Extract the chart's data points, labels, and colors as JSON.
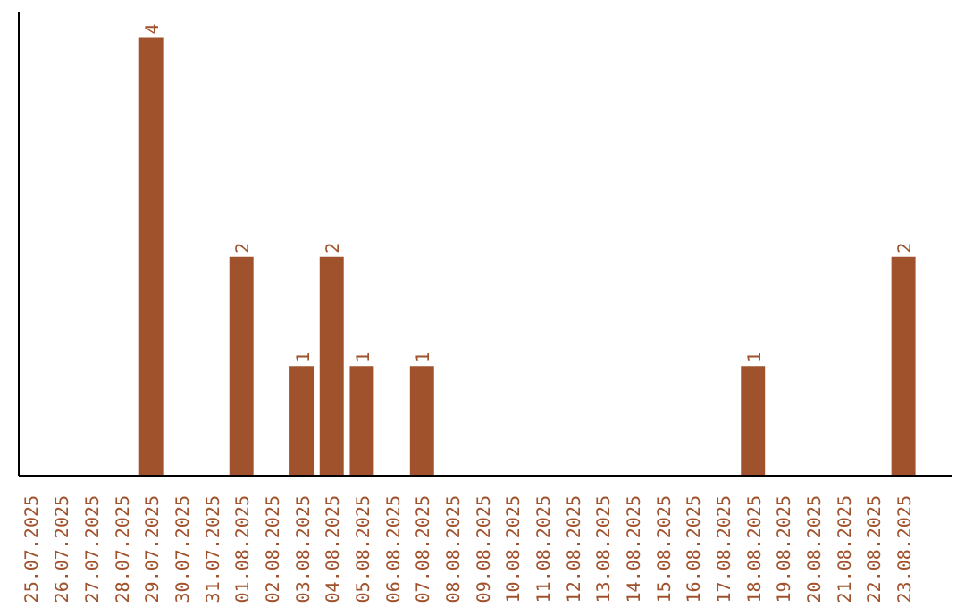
{
  "chart_data": {
    "type": "bar",
    "categories": [
      "25.07.2025",
      "26.07.2025",
      "27.07.2025",
      "28.07.2025",
      "29.07.2025",
      "30.07.2025",
      "31.07.2025",
      "01.08.2025",
      "02.08.2025",
      "03.08.2025",
      "04.08.2025",
      "05.08.2025",
      "06.08.2025",
      "07.08.2025",
      "08.08.2025",
      "09.08.2025",
      "10.08.2025",
      "11.08.2025",
      "12.08.2025",
      "13.08.2025",
      "14.08.2025",
      "15.08.2025",
      "16.08.2025",
      "17.08.2025",
      "18.08.2025",
      "19.08.2025",
      "20.08.2025",
      "21.08.2025",
      "22.08.2025",
      "23.08.2025"
    ],
    "values": [
      0,
      0,
      0,
      0,
      4,
      0,
      0,
      2,
      0,
      1,
      2,
      1,
      0,
      1,
      0,
      0,
      0,
      0,
      0,
      0,
      0,
      0,
      0,
      0,
      1,
      0,
      0,
      0,
      0,
      2
    ],
    "value_labels": [
      null,
      null,
      null,
      null,
      "4",
      null,
      null,
      "2",
      null,
      "1",
      "2",
      "1",
      null,
      "1",
      null,
      null,
      null,
      null,
      null,
      null,
      null,
      null,
      null,
      null,
      "1",
      null,
      null,
      null,
      null,
      "2"
    ],
    "color": "#a0522d",
    "grid": false
  }
}
